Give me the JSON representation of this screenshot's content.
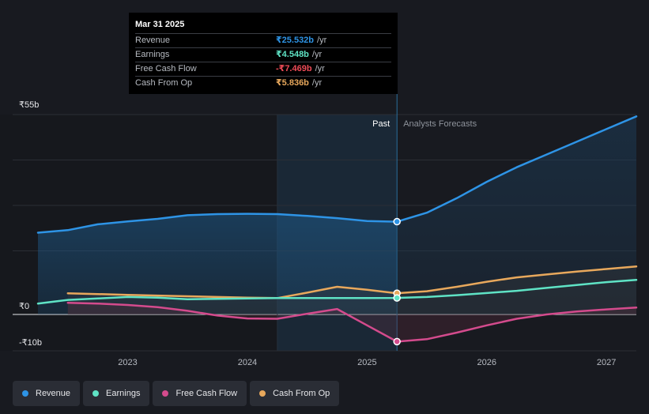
{
  "tooltip": {
    "date": "Mar 31 2025",
    "rows": [
      {
        "label": "Revenue",
        "value": "₹25.532b",
        "unit": "/yr",
        "color": "#2e94e6"
      },
      {
        "label": "Earnings",
        "value": "₹4.548b",
        "unit": "/yr",
        "color": "#5fe3c5"
      },
      {
        "label": "Free Cash Flow",
        "value": "-₹7.469b",
        "unit": "/yr",
        "color": "#ee4b57"
      },
      {
        "label": "Cash From Op",
        "value": "₹5.836b",
        "unit": "/yr",
        "color": "#e8a85c"
      }
    ]
  },
  "legend": [
    {
      "label": "Revenue",
      "color": "#2e94e6"
    },
    {
      "label": "Earnings",
      "color": "#5fe3c5"
    },
    {
      "label": "Free Cash Flow",
      "color": "#d44b8d"
    },
    {
      "label": "Cash From Op",
      "color": "#e8a85c"
    }
  ],
  "chart_data": {
    "type": "line",
    "title": "",
    "y_unit": "₹b",
    "ylim": [
      -10,
      55
    ],
    "yticks": [
      {
        "value": 55,
        "label": "₹55b"
      },
      {
        "value": 0,
        "label": "₹0"
      },
      {
        "value": -10,
        "label": "-₹10b"
      }
    ],
    "xlim": [
      2022.25,
      2027.25
    ],
    "xticks": [
      {
        "value": 2023,
        "label": "2023"
      },
      {
        "value": 2024,
        "label": "2024"
      },
      {
        "value": 2025,
        "label": "2025"
      },
      {
        "value": 2026,
        "label": "2026"
      },
      {
        "value": 2027,
        "label": "2027"
      }
    ],
    "past_label": "Past",
    "forecast_label": "Analysts Forecasts",
    "past_end": 2025.25,
    "highlight_start": 2024.25,
    "marker_x": 2025.25,
    "series": [
      {
        "name": "Revenue",
        "color": "#2e94e6",
        "width": 2.5,
        "points": [
          [
            2022.25,
            22.5
          ],
          [
            2022.5,
            23.2
          ],
          [
            2022.75,
            24.8
          ],
          [
            2023.0,
            25.6
          ],
          [
            2023.25,
            26.3
          ],
          [
            2023.5,
            27.3
          ],
          [
            2023.75,
            27.6
          ],
          [
            2024.0,
            27.7
          ],
          [
            2024.25,
            27.6
          ],
          [
            2024.5,
            27.1
          ],
          [
            2024.75,
            26.5
          ],
          [
            2025.0,
            25.7
          ],
          [
            2025.25,
            25.532
          ],
          [
            2025.5,
            28.0
          ],
          [
            2025.75,
            32.0
          ],
          [
            2026.0,
            36.5
          ],
          [
            2026.25,
            40.5
          ],
          [
            2026.5,
            44.0
          ],
          [
            2026.75,
            47.5
          ],
          [
            2027.0,
            51.0
          ],
          [
            2027.25,
            54.5
          ]
        ]
      },
      {
        "name": "Cash From Op",
        "color": "#e8a85c",
        "width": 2.5,
        "points": [
          [
            2022.5,
            5.8
          ],
          [
            2022.75,
            5.6
          ],
          [
            2023.0,
            5.4
          ],
          [
            2023.25,
            5.2
          ],
          [
            2023.5,
            5.0
          ],
          [
            2023.75,
            4.8
          ],
          [
            2024.0,
            4.6
          ],
          [
            2024.25,
            4.5
          ],
          [
            2024.5,
            6.0
          ],
          [
            2024.75,
            7.6
          ],
          [
            2025.0,
            6.8
          ],
          [
            2025.25,
            5.836
          ],
          [
            2025.5,
            6.4
          ],
          [
            2025.75,
            7.6
          ],
          [
            2026.0,
            9.0
          ],
          [
            2026.25,
            10.2
          ],
          [
            2026.5,
            11.0
          ],
          [
            2026.75,
            11.8
          ],
          [
            2027.0,
            12.5
          ],
          [
            2027.25,
            13.2
          ]
        ]
      },
      {
        "name": "Earnings",
        "color": "#5fe3c5",
        "width": 2.5,
        "points": [
          [
            2022.25,
            3.0
          ],
          [
            2022.5,
            4.0
          ],
          [
            2022.75,
            4.4
          ],
          [
            2023.0,
            4.8
          ],
          [
            2023.25,
            4.6
          ],
          [
            2023.5,
            4.2
          ],
          [
            2023.75,
            4.3
          ],
          [
            2024.0,
            4.4
          ],
          [
            2024.25,
            4.5
          ],
          [
            2024.5,
            4.5
          ],
          [
            2024.75,
            4.5
          ],
          [
            2025.0,
            4.5
          ],
          [
            2025.25,
            4.548
          ],
          [
            2025.5,
            4.8
          ],
          [
            2025.75,
            5.3
          ],
          [
            2026.0,
            5.9
          ],
          [
            2026.25,
            6.5
          ],
          [
            2026.5,
            7.3
          ],
          [
            2026.75,
            8.1
          ],
          [
            2027.0,
            8.9
          ],
          [
            2027.25,
            9.5
          ]
        ]
      },
      {
        "name": "Free Cash Flow",
        "color": "#d44b8d",
        "width": 2.5,
        "points": [
          [
            2022.5,
            3.2
          ],
          [
            2022.75,
            3.0
          ],
          [
            2023.0,
            2.6
          ],
          [
            2023.25,
            2.0
          ],
          [
            2023.5,
            1.0
          ],
          [
            2023.75,
            -0.3
          ],
          [
            2024.0,
            -1.1
          ],
          [
            2024.25,
            -1.2
          ],
          [
            2024.5,
            0.2
          ],
          [
            2024.75,
            1.5
          ],
          [
            2025.0,
            -3.0
          ],
          [
            2025.25,
            -7.469
          ],
          [
            2025.5,
            -6.8
          ],
          [
            2025.75,
            -5.0
          ],
          [
            2026.0,
            -3.0
          ],
          [
            2026.25,
            -1.2
          ],
          [
            2026.5,
            0.0
          ],
          [
            2026.75,
            0.8
          ],
          [
            2027.0,
            1.4
          ],
          [
            2027.25,
            1.9
          ]
        ]
      }
    ]
  }
}
